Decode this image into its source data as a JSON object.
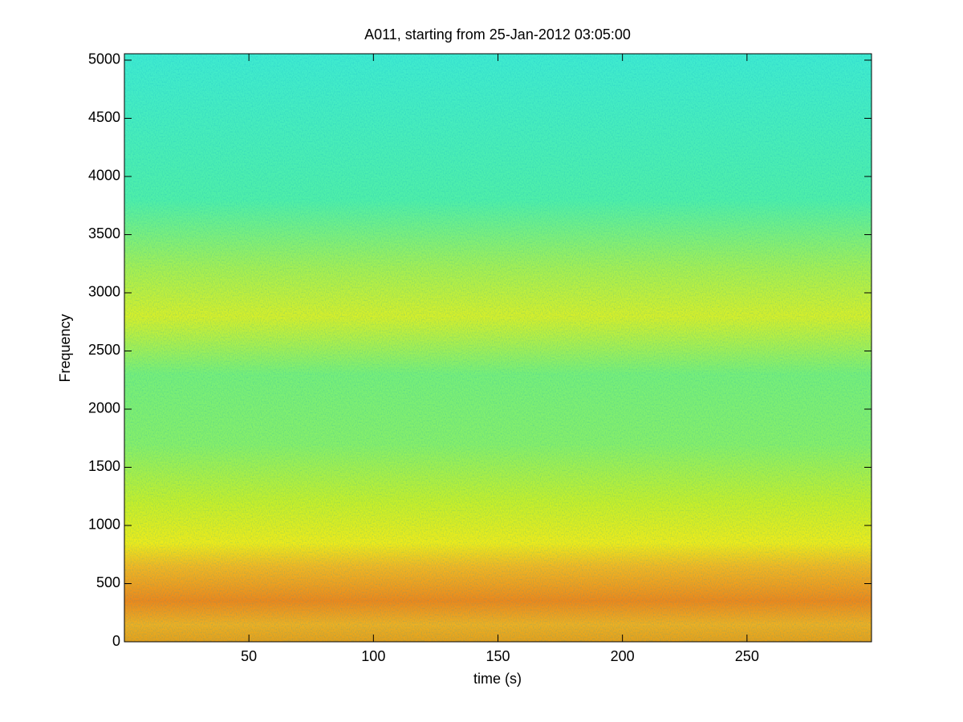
{
  "chart_data": {
    "type": "spectrogram",
    "title": "A011, starting from 25-Jan-2012 03:05:00",
    "x_label": "time (s)",
    "y_label": "Frequency",
    "xlim": [
      0,
      300
    ],
    "ylim": [
      0,
      5055
    ],
    "xticks": [
      50,
      100,
      150,
      200,
      250
    ],
    "yticks": [
      0,
      500,
      1000,
      1500,
      2000,
      2500,
      3000,
      3500,
      4000,
      4500,
      5000
    ],
    "color_stops": [
      {
        "frequency": 0,
        "color": "#e8a018"
      },
      {
        "frequency": 150,
        "color": "#f0b020"
      },
      {
        "frequency": 350,
        "color": "#f08818"
      },
      {
        "frequency": 650,
        "color": "#f4b820"
      },
      {
        "frequency": 850,
        "color": "#f0ec18"
      },
      {
        "frequency": 1200,
        "color": "#c8f028"
      },
      {
        "frequency": 1700,
        "color": "#88f068"
      },
      {
        "frequency": 2300,
        "color": "#78f078"
      },
      {
        "frequency": 2800,
        "color": "#d8f028"
      },
      {
        "frequency": 3200,
        "color": "#a8f050"
      },
      {
        "frequency": 3800,
        "color": "#50f0a8"
      },
      {
        "frequency": 5055,
        "color": "#40ecd0"
      }
    ]
  }
}
